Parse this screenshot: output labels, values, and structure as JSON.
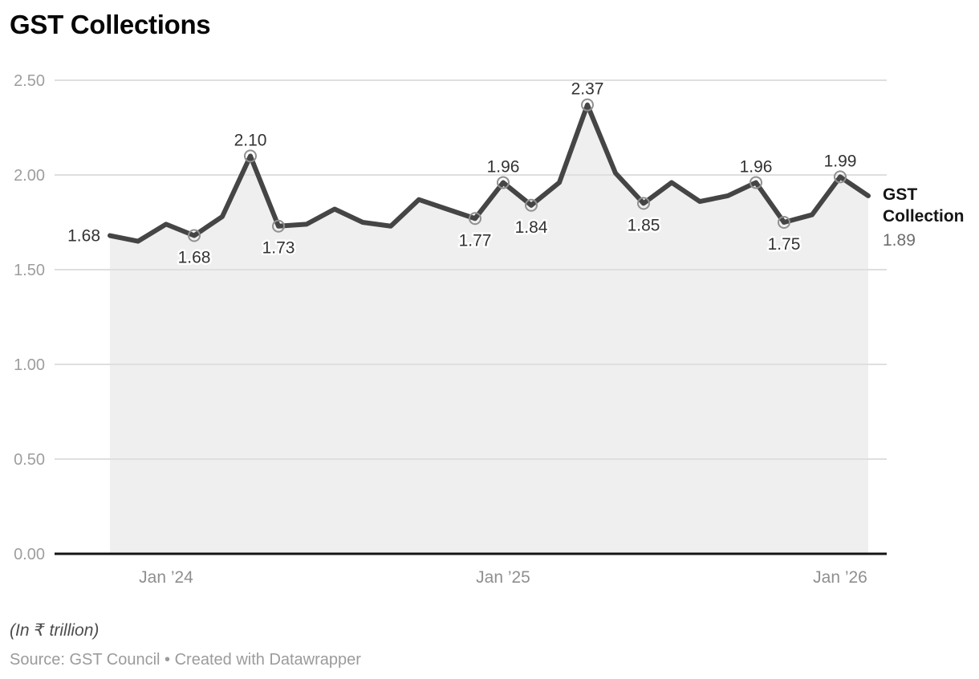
{
  "title": "GST Collections",
  "legend": {
    "series_label": "GST Collection",
    "last_value": "1.89"
  },
  "footer": {
    "unit_note": "(In ₹ trillion)",
    "source": "Source: GST Council • Created with Datawrapper"
  },
  "colors": {
    "line": "#454545",
    "area_fill": "#efefef",
    "gridline": "#dfdfdf",
    "axis_line": "#141414",
    "y_tick_label": "#9e9e9e",
    "x_tick_label": "#8f8f8f",
    "data_label": "#333333",
    "data_label_halo": "#ffffff",
    "marker_ring": "#909090"
  },
  "chart_data": {
    "type": "area",
    "title": "GST Collections",
    "unit": "₹ trillion",
    "ylabel": "",
    "xlabel": "",
    "ylim": [
      0,
      2.5
    ],
    "grid": true,
    "legend_position": "right of line end",
    "x": [
      "Nov 2023",
      "Dec 2023",
      "Jan 2024",
      "Feb 2024",
      "Mar 2024",
      "Apr 2024",
      "May 2024",
      "Jun 2024",
      "Jul 2024",
      "Aug 2024",
      "Sep 2024",
      "Oct 2024",
      "Nov 2024",
      "Dec 2024",
      "Jan 2025",
      "Feb 2025",
      "Mar 2025",
      "Apr 2025",
      "May 2025",
      "Jun 2025",
      "Jul 2025",
      "Aug 2025",
      "Sep 2025",
      "Oct 2025",
      "Nov 2025",
      "Dec 2025",
      "Jan 2026",
      "Feb 2026"
    ],
    "series": [
      {
        "name": "GST Collection",
        "values": [
          1.68,
          1.65,
          1.74,
          1.68,
          1.78,
          2.1,
          1.73,
          1.74,
          1.82,
          1.75,
          1.73,
          1.87,
          1.82,
          1.77,
          1.96,
          1.84,
          1.96,
          2.37,
          2.01,
          1.85,
          1.96,
          1.86,
          1.89,
          1.96,
          1.75,
          1.79,
          1.99,
          1.89
        ]
      }
    ],
    "y_ticks": [
      "0.00",
      "0.50",
      "1.00",
      "1.50",
      "2.00",
      "2.50"
    ],
    "x_ticks": [
      {
        "label": "Jan ’24",
        "index": 2
      },
      {
        "label": "Jan ’25",
        "index": 14
      },
      {
        "label": "Jan ’26",
        "index": 26
      }
    ],
    "point_labels": [
      {
        "index": 0,
        "text": "1.68",
        "placement": "left",
        "marker": false
      },
      {
        "index": 3,
        "text": "1.68",
        "placement": "below",
        "marker": true
      },
      {
        "index": 5,
        "text": "2.10",
        "placement": "above",
        "marker": true
      },
      {
        "index": 6,
        "text": "1.73",
        "placement": "below",
        "marker": true
      },
      {
        "index": 13,
        "text": "1.77",
        "placement": "below",
        "marker": true
      },
      {
        "index": 14,
        "text": "1.96",
        "placement": "above",
        "marker": true
      },
      {
        "index": 15,
        "text": "1.84",
        "placement": "below",
        "marker": true
      },
      {
        "index": 17,
        "text": "2.37",
        "placement": "above",
        "marker": true
      },
      {
        "index": 19,
        "text": "1.85",
        "placement": "below",
        "marker": true
      },
      {
        "index": 23,
        "text": "1.96",
        "placement": "above",
        "marker": true
      },
      {
        "index": 24,
        "text": "1.75",
        "placement": "below",
        "marker": true
      },
      {
        "index": 26,
        "text": "1.99",
        "placement": "above",
        "marker": true
      }
    ]
  }
}
